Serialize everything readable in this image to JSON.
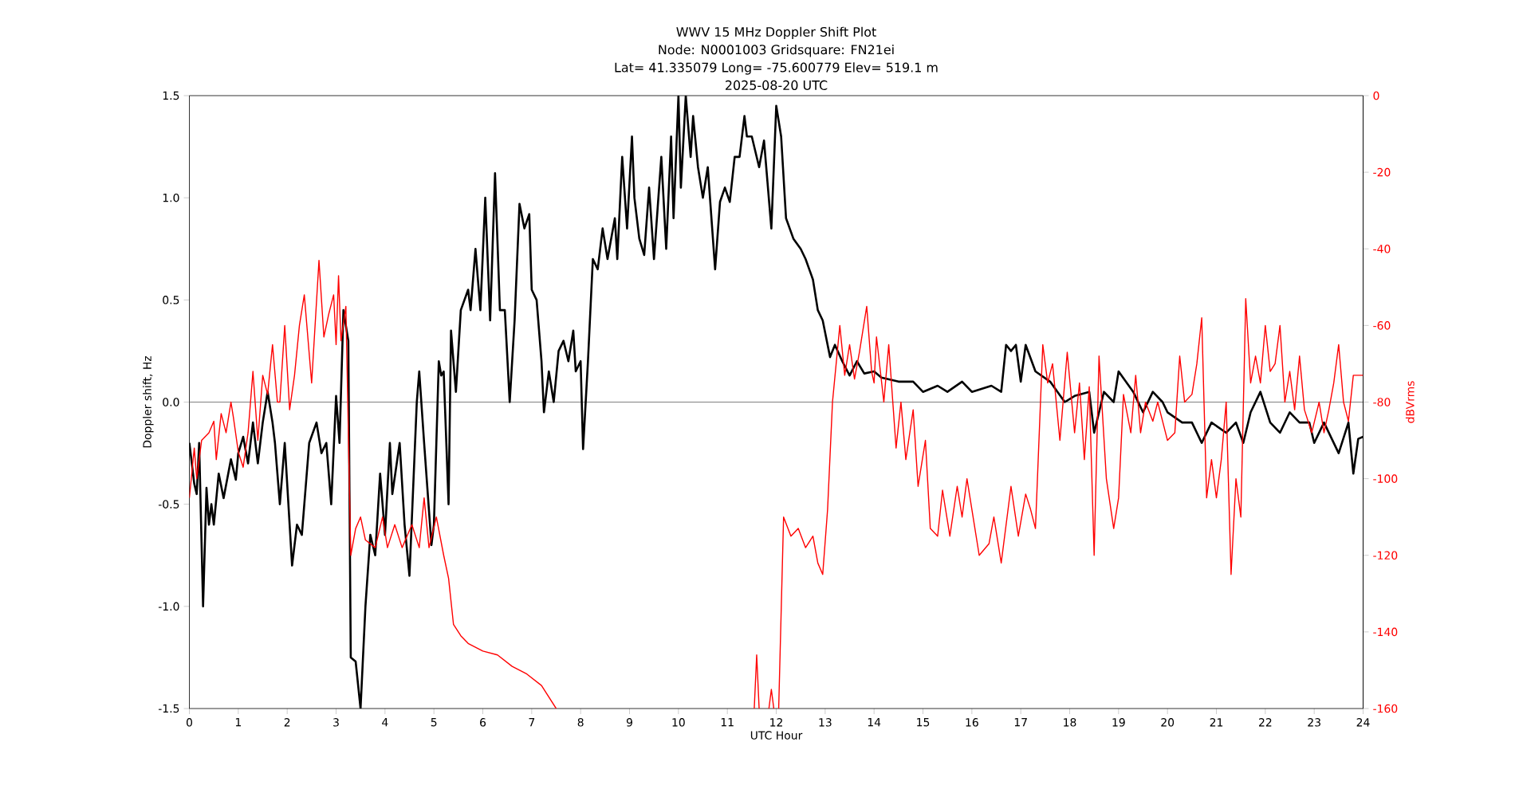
{
  "chart_data": {
    "type": "line",
    "title": "WWV 15 MHz Doppler Shift Plot",
    "subtitle": "Node:  N0001003     Gridsquare:  FN21ei",
    "annotations": [
      "Lat= 41.335079    Long= -75.600779    Elev= 519.1 m",
      "2025-08-20  UTC"
    ],
    "xlabel": "UTC Hour",
    "ylabel": "Doppler shift, Hz",
    "y2label": "dBVrms",
    "xlim": [
      0,
      24
    ],
    "xticks": [
      0,
      1,
      2,
      3,
      4,
      5,
      6,
      7,
      8,
      9,
      10,
      11,
      12,
      13,
      14,
      15,
      16,
      17,
      18,
      19,
      20,
      21,
      22,
      23,
      24
    ],
    "ylim": [
      -1.5,
      1.5
    ],
    "yticks": [
      -1.5,
      {
        "value": -1,
        "label": "-1.0"
      },
      -0.5,
      {
        "value": 0,
        "label": "0.0"
      },
      0.5,
      {
        "value": 1,
        "label": "1.0"
      },
      1.5
    ],
    "y2lim": [
      -160,
      0
    ],
    "y2ticks": [
      -160,
      -140,
      -120,
      -100,
      -80,
      -60,
      -40,
      -20,
      0
    ],
    "ref_lines": [
      {
        "axis": "y",
        "value": 0,
        "color": "#808080"
      }
    ],
    "series": [
      {
        "color": "#000000",
        "x": [
          0.0,
          0.1,
          0.15,
          0.2,
          0.28,
          0.35,
          0.4,
          0.45,
          0.5,
          0.6,
          0.7,
          0.85,
          0.95,
          1.0,
          1.1,
          1.2,
          1.3,
          1.4,
          1.5,
          1.6,
          1.7,
          1.75,
          1.85,
          1.95,
          2.1,
          2.2,
          2.3,
          2.45,
          2.6,
          2.7,
          2.8,
          2.9,
          3.0,
          3.07,
          3.15,
          3.25,
          3.3,
          3.4,
          3.5,
          3.6,
          3.7,
          3.8,
          3.9,
          4.0,
          4.1,
          4.15,
          4.3,
          4.4,
          4.5,
          4.65,
          4.7,
          4.8,
          4.95,
          5.0,
          5.1,
          5.15,
          5.2,
          5.3,
          5.35,
          5.45,
          5.55,
          5.7,
          5.75,
          5.85,
          5.95,
          6.05,
          6.15,
          6.25,
          6.35,
          6.45,
          6.55,
          6.65,
          6.75,
          6.85,
          6.95,
          7.0,
          7.1,
          7.2,
          7.25,
          7.35,
          7.45,
          7.55,
          7.65,
          7.75,
          7.85,
          7.9,
          8.0,
          8.05,
          8.15,
          8.25,
          8.35,
          8.45,
          8.55,
          8.7,
          8.75,
          8.85,
          8.95,
          9.05,
          9.1,
          9.2,
          9.3,
          9.4,
          9.5,
          9.65,
          9.75,
          9.85,
          9.9,
          10.0,
          10.05,
          10.15,
          10.25,
          10.3,
          10.4,
          10.5,
          10.6,
          10.75,
          10.85,
          10.95,
          11.05,
          11.15,
          11.25,
          11.35,
          11.4,
          11.5,
          11.65,
          11.75,
          11.9,
          12.0,
          12.1,
          12.2,
          12.35,
          12.5,
          12.6,
          12.75,
          12.85,
          12.95,
          13.1,
          13.2,
          13.35,
          13.5,
          13.65,
          13.8,
          14.0,
          14.15,
          14.5,
          14.8,
          15.0,
          15.3,
          15.5,
          15.8,
          16.0,
          16.4,
          16.6,
          16.7,
          16.8,
          16.9,
          17.0,
          17.1,
          17.3,
          17.6,
          17.9,
          18.1,
          18.4,
          18.5,
          18.7,
          18.9,
          19.0,
          19.3,
          19.5,
          19.7,
          19.9,
          20.0,
          20.3,
          20.5,
          20.7,
          20.9,
          21.2,
          21.4,
          21.55,
          21.7,
          21.9,
          22.1,
          22.3,
          22.5,
          22.7,
          22.9,
          23.0,
          23.2,
          23.5,
          23.7,
          23.8,
          23.9,
          24.0
        ],
        "values": [
          -0.2,
          -0.4,
          -0.45,
          -0.2,
          -1.0,
          -0.42,
          -0.6,
          -0.5,
          -0.6,
          -0.35,
          -0.47,
          -0.28,
          -0.38,
          -0.25,
          -0.17,
          -0.3,
          -0.1,
          -0.3,
          -0.1,
          0.05,
          -0.1,
          -0.2,
          -0.5,
          -0.2,
          -0.8,
          -0.6,
          -0.65,
          -0.2,
          -0.1,
          -0.25,
          -0.2,
          -0.5,
          0.03,
          -0.2,
          0.45,
          0.3,
          -1.25,
          -1.27,
          -1.5,
          -1.0,
          -0.65,
          -0.75,
          -0.35,
          -0.65,
          -0.2,
          -0.45,
          -0.2,
          -0.6,
          -0.85,
          0.0,
          0.15,
          -0.2,
          -0.7,
          -0.6,
          0.2,
          0.13,
          0.15,
          -0.5,
          0.35,
          0.05,
          0.45,
          0.55,
          0.45,
          0.75,
          0.45,
          1.0,
          0.4,
          1.12,
          0.45,
          0.45,
          0.0,
          0.4,
          0.97,
          0.85,
          0.92,
          0.55,
          0.5,
          0.2,
          -0.05,
          0.15,
          0.0,
          0.25,
          0.3,
          0.2,
          0.35,
          0.15,
          0.2,
          -0.23,
          0.2,
          0.7,
          0.65,
          0.85,
          0.7,
          0.9,
          0.7,
          1.2,
          0.85,
          1.3,
          1.0,
          0.8,
          0.72,
          1.05,
          0.7,
          1.2,
          0.75,
          1.3,
          0.9,
          1.5,
          1.05,
          1.5,
          1.2,
          1.4,
          1.15,
          1.0,
          1.15,
          0.65,
          0.98,
          1.05,
          0.98,
          1.2,
          1.2,
          1.4,
          1.3,
          1.3,
          1.15,
          1.28,
          0.85,
          1.45,
          1.3,
          0.9,
          0.8,
          0.75,
          0.7,
          0.6,
          0.45,
          0.4,
          0.22,
          0.28,
          0.2,
          0.13,
          0.2,
          0.14,
          0.15,
          0.12,
          0.1,
          0.1,
          0.05,
          0.08,
          0.05,
          0.1,
          0.05,
          0.08,
          0.05,
          0.28,
          0.25,
          0.28,
          0.1,
          0.28,
          0.15,
          0.1,
          0.0,
          0.03,
          0.05,
          -0.15,
          0.05,
          0.0,
          0.15,
          0.05,
          -0.05,
          0.05,
          0.0,
          -0.05,
          -0.1,
          -0.1,
          -0.2,
          -0.1,
          -0.15,
          -0.1,
          -0.2,
          -0.05,
          0.05,
          -0.1,
          -0.15,
          -0.05,
          -0.1,
          -0.1,
          -0.2,
          -0.1,
          -0.25,
          -0.1,
          -0.35,
          -0.18,
          -0.17
        ]
      },
      {
        "color": "#ff0000",
        "axis": "y2",
        "x": [
          0.0,
          0.1,
          0.15,
          0.25,
          0.4,
          0.5,
          0.55,
          0.65,
          0.75,
          0.85,
          0.9,
          1.0,
          1.1,
          1.2,
          1.3,
          1.4,
          1.5,
          1.6,
          1.7,
          1.8,
          1.85,
          1.95,
          2.05,
          2.15,
          2.25,
          2.35,
          2.5,
          2.65,
          2.75,
          2.85,
          2.95,
          3.0,
          3.05,
          3.1,
          3.2,
          3.3,
          3.4,
          3.5,
          3.6,
          3.8,
          3.95,
          4.05,
          4.2,
          4.35,
          4.55,
          4.7,
          4.8,
          4.9,
          5.05,
          5.2,
          5.3,
          5.4,
          5.55,
          5.7,
          6.0,
          6.3,
          6.6,
          6.9,
          7.2,
          7.5,
          9.5,
          11.55,
          11.6,
          11.65,
          11.75,
          11.85,
          11.9,
          11.95,
          12.0,
          12.05,
          12.15,
          12.3,
          12.45,
          12.6,
          12.75,
          12.85,
          12.95,
          13.05,
          13.15,
          13.3,
          13.4,
          13.5,
          13.6,
          13.7,
          13.85,
          13.95,
          14.0,
          14.05,
          14.2,
          14.3,
          14.45,
          14.55,
          14.65,
          14.8,
          14.9,
          15.05,
          15.15,
          15.3,
          15.4,
          15.55,
          15.7,
          15.8,
          15.9,
          16.05,
          16.15,
          16.35,
          16.45,
          16.6,
          16.8,
          16.95,
          17.1,
          17.2,
          17.3,
          17.45,
          17.55,
          17.65,
          17.8,
          17.95,
          18.1,
          18.2,
          18.3,
          18.4,
          18.5,
          18.6,
          18.75,
          18.9,
          19.0,
          19.1,
          19.25,
          19.35,
          19.45,
          19.55,
          19.7,
          19.8,
          20.0,
          20.15,
          20.25,
          20.35,
          20.5,
          20.6,
          20.7,
          20.8,
          20.9,
          21.0,
          21.1,
          21.2,
          21.3,
          21.4,
          21.5,
          21.6,
          21.7,
          21.8,
          21.9,
          22.0,
          22.1,
          22.2,
          22.3,
          22.4,
          22.5,
          22.6,
          22.7,
          22.8,
          22.95,
          23.1,
          23.2,
          23.3,
          23.4,
          23.5,
          23.6,
          23.7,
          23.8,
          23.9,
          24.0
        ],
        "values": [
          -105,
          -92,
          -100,
          -90,
          -88,
          -85,
          -95,
          -83,
          -88,
          -80,
          -84,
          -93,
          -97,
          -88,
          -72,
          -90,
          -73,
          -78,
          -65,
          -80,
          -80,
          -60,
          -82,
          -73,
          -60,
          -52,
          -75,
          -43,
          -63,
          -57,
          -52,
          -65,
          -47,
          -64,
          -55,
          -120,
          -113,
          -110,
          -116,
          -118,
          -110,
          -118,
          -112,
          -118,
          -112,
          -118,
          -105,
          -118,
          -110,
          -120,
          -126,
          -138,
          -141,
          -143,
          -145,
          -146,
          -149,
          -151,
          -154,
          -160,
          null,
          -160,
          -146,
          -160,
          null,
          -160,
          -155,
          -160,
          null,
          -160,
          -110,
          -115,
          -113,
          -118,
          -115,
          -122,
          -125,
          -108,
          -80,
          -60,
          -73,
          -65,
          -74,
          -67,
          -55,
          -72,
          -75,
          -63,
          -80,
          -65,
          -92,
          -80,
          -95,
          -82,
          -102,
          -90,
          -113,
          -115,
          -103,
          -115,
          -102,
          -110,
          -100,
          -112,
          -120,
          -117,
          -110,
          -122,
          -102,
          -115,
          -104,
          -108,
          -113,
          -65,
          -75,
          -70,
          -90,
          -67,
          -88,
          -75,
          -95,
          -76,
          -120,
          -68,
          -100,
          -113,
          -105,
          -78,
          -88,
          -73,
          -88,
          -80,
          -85,
          -80,
          -90,
          -88,
          -68,
          -80,
          -78,
          -70,
          -58,
          -105,
          -95,
          -105,
          -95,
          -80,
          -125,
          -100,
          -110,
          -53,
          -75,
          -68,
          -75,
          -60,
          -72,
          -70,
          -60,
          -80,
          -72,
          -82,
          -68,
          -82,
          -88,
          -80,
          -88,
          -82,
          -75,
          -65,
          -80,
          -85,
          -73,
          -73,
          -73
        ]
      }
    ]
  }
}
